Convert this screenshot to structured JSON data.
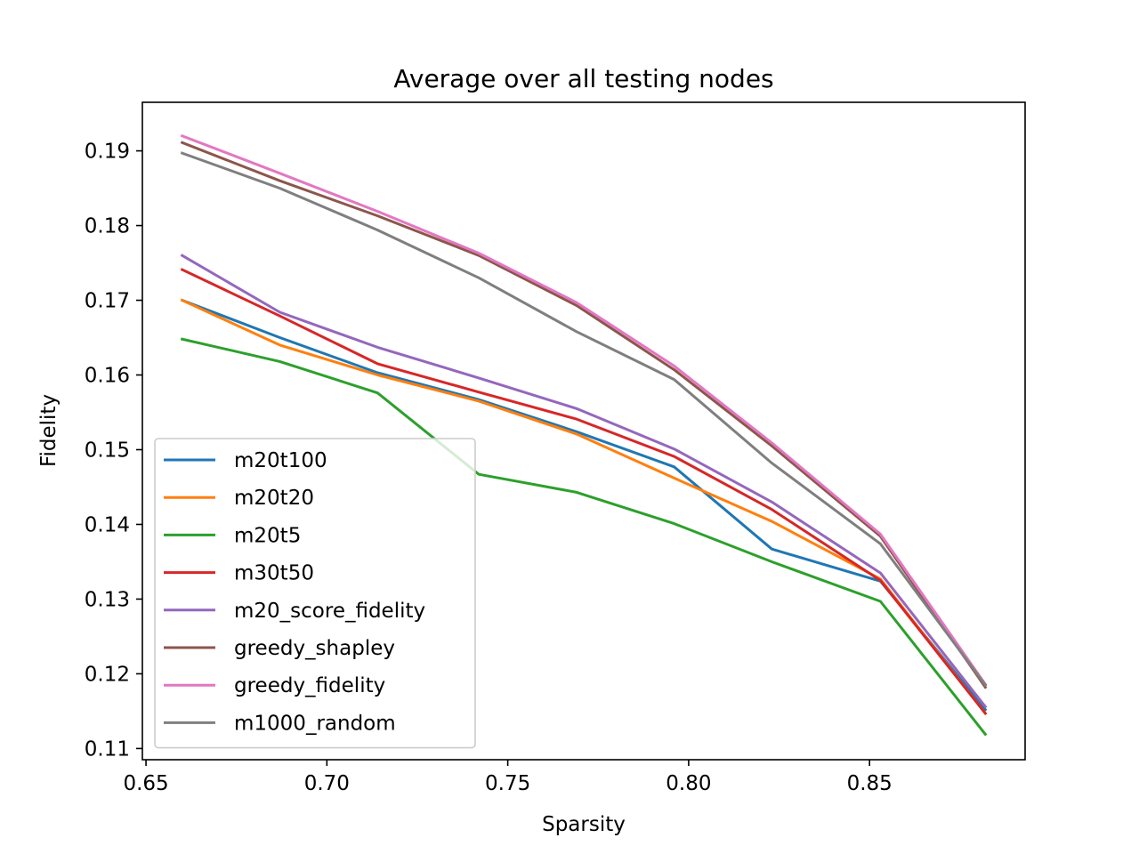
{
  "chart_data": {
    "type": "line",
    "title": "Average over all testing nodes",
    "xlabel": "Sparsity",
    "ylabel": "Fidelity",
    "xlim": [
      0.649,
      0.893
    ],
    "ylim": [
      0.1085,
      0.1965
    ],
    "xticks": [
      0.65,
      0.7,
      0.75,
      0.8,
      0.85
    ],
    "xtick_labels": [
      "0.65",
      "0.70",
      "0.75",
      "0.80",
      "0.85"
    ],
    "yticks": [
      0.11,
      0.12,
      0.13,
      0.14,
      0.15,
      0.16,
      0.17,
      0.18,
      0.19
    ],
    "ytick_labels": [
      "0.11",
      "0.12",
      "0.13",
      "0.14",
      "0.15",
      "0.16",
      "0.17",
      "0.18",
      "0.19"
    ],
    "grid": false,
    "legend_position": "lower-left",
    "x": [
      0.66,
      0.687,
      0.714,
      0.742,
      0.769,
      0.796,
      0.823,
      0.853,
      0.882
    ],
    "series": [
      {
        "name": "m20t100",
        "color": "#1f77b4",
        "values": [
          0.17,
          0.165,
          0.1603,
          0.1567,
          0.1524,
          0.1477,
          0.1367,
          0.1324,
          0.1152
        ]
      },
      {
        "name": "m20t20",
        "color": "#ff7f0e",
        "values": [
          0.17,
          0.164,
          0.16,
          0.1565,
          0.1521,
          0.1462,
          0.1404,
          0.1327,
          0.1147
        ]
      },
      {
        "name": "m20t5",
        "color": "#2ca02c",
        "values": [
          0.1648,
          0.1618,
          0.1576,
          0.1467,
          0.1443,
          0.1401,
          0.135,
          0.1297,
          0.1119
        ]
      },
      {
        "name": "m30t50",
        "color": "#d62728",
        "values": [
          0.1741,
          0.1679,
          0.1615,
          0.1577,
          0.1541,
          0.1491,
          0.142,
          0.1325,
          0.1147
        ]
      },
      {
        "name": "m20_score_fidelity",
        "color": "#9467bd",
        "values": [
          0.176,
          0.1684,
          0.1637,
          0.1596,
          0.1555,
          0.1501,
          0.143,
          0.1335,
          0.1156
        ]
      },
      {
        "name": "greedy_shapley",
        "color": "#8c564b",
        "values": [
          0.1911,
          0.186,
          0.1813,
          0.176,
          0.1693,
          0.1607,
          0.1505,
          0.1384,
          0.1182
        ]
      },
      {
        "name": "greedy_fidelity",
        "color": "#e377c2",
        "values": [
          0.192,
          0.187,
          0.1819,
          0.1763,
          0.1697,
          0.1612,
          0.1509,
          0.1387,
          0.1186
        ]
      },
      {
        "name": "m1000_random",
        "color": "#7f7f7f",
        "values": [
          0.1897,
          0.185,
          0.1794,
          0.173,
          0.1658,
          0.1594,
          0.1482,
          0.1374,
          0.1185
        ]
      }
    ]
  }
}
